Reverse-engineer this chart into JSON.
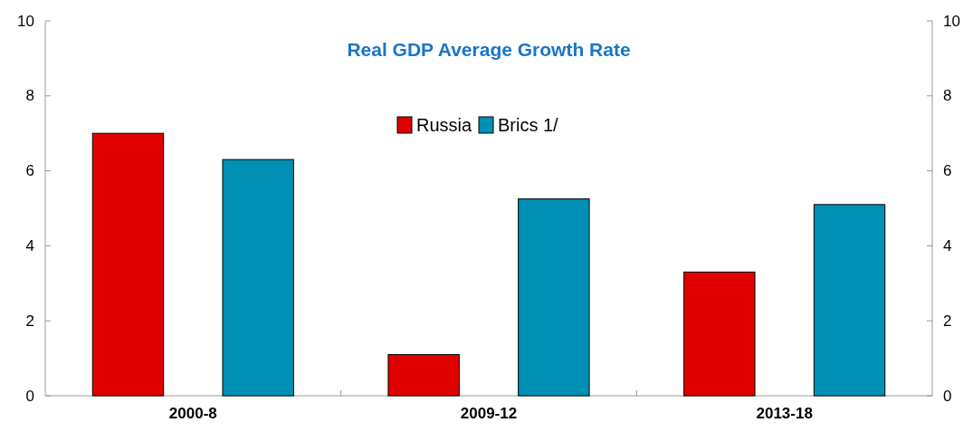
{
  "chart_data": {
    "type": "bar",
    "title": "Real GDP Average Growth Rate",
    "categories": [
      "2000-8",
      "2009-12",
      "2013-18"
    ],
    "series": [
      {
        "name": "Russia",
        "color": "#e00000",
        "values": [
          7.0,
          1.1,
          3.3
        ]
      },
      {
        "name": "Brics 1/",
        "color": "#008fb5",
        "values": [
          6.3,
          5.25,
          5.1
        ]
      }
    ],
    "ylim": [
      0,
      10
    ],
    "yticks": [
      0,
      2,
      4,
      6,
      8,
      10
    ],
    "y2lim": [
      0,
      10
    ],
    "y2ticks": [
      0,
      2,
      4,
      6,
      8,
      10
    ],
    "grid": false,
    "legend": "top"
  }
}
